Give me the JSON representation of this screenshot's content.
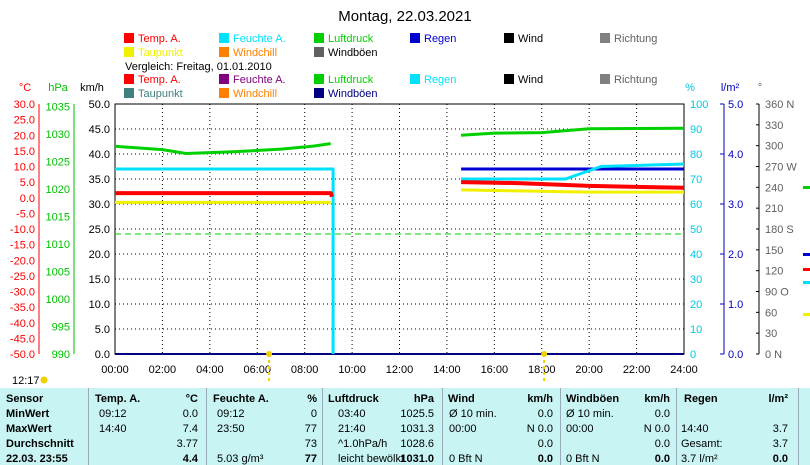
{
  "header": {
    "title": "Montag, 22.03.2021",
    "compare_label": "Vergleich: Freitag, 01.01.2010",
    "time_label": "12:17"
  },
  "legend_main": [
    {
      "label": "Temp. A.",
      "color": "#ff0000"
    },
    {
      "label": "Feuchte A.",
      "color": "#00e0ff"
    },
    {
      "label": "Luftdruck",
      "color": "#00d000"
    },
    {
      "label": "Regen",
      "color": "#0000d0"
    },
    {
      "label": "Wind",
      "color": "#000000"
    },
    {
      "label": "Richtung",
      "color": "#808080"
    },
    {
      "label": "Taupunkt",
      "color": "#f0f000"
    },
    {
      "label": "Windchill",
      "color": "#ff8000"
    },
    {
      "label": "Windböen",
      "color": "#606060"
    }
  ],
  "legend_compare": [
    {
      "label": "Temp. A.",
      "color": "#ff0000"
    },
    {
      "label": "Feuchte A.",
      "color": "#800080"
    },
    {
      "label": "Luftdruck",
      "color": "#00d000"
    },
    {
      "label": "Regen",
      "color": "#00e0ff"
    },
    {
      "label": "Wind",
      "color": "#000000"
    },
    {
      "label": "Richtung",
      "color": "#808080"
    },
    {
      "label": "Taupunkt",
      "color": "#408080"
    },
    {
      "label": "Windchill",
      "color": "#ff8000"
    },
    {
      "label": "Windböen",
      "color": "#000080"
    }
  ],
  "axes": {
    "temp": {
      "unit": "°C",
      "color": "#ff0000",
      "ticks": [
        "30.0",
        "25.0",
        "20.0",
        "15.0",
        "10.0",
        "5.0",
        "0.0",
        "-5.0",
        "-10.0",
        "-15.0",
        "-20.0",
        "-25.0",
        "-30.0",
        "-35.0",
        "-40.0",
        "-45.0",
        "-50.0"
      ]
    },
    "pressure": {
      "unit": "hPa",
      "color": "#00c000",
      "ticks": [
        "1035",
        "1030",
        "1025",
        "1020",
        "1015",
        "1010",
        "1005",
        "1000",
        "995",
        "990"
      ]
    },
    "wind": {
      "unit": "km/h",
      "color": "#000000",
      "ticks": [
        "50.0",
        "45.0",
        "40.0",
        "35.0",
        "30.0",
        "25.0",
        "20.0",
        "15.0",
        "10.0",
        "5.0",
        "0.0"
      ]
    },
    "humidity": {
      "unit": "%",
      "color": "#00c8e8",
      "ticks": [
        "100",
        "90",
        "80",
        "70",
        "60",
        "50",
        "40",
        "30",
        "20",
        "10",
        "0"
      ]
    },
    "rain": {
      "unit": "l/m²",
      "color": "#0000c0",
      "ticks": [
        "5.0",
        "4.0",
        "3.0",
        "2.0",
        "1.0",
        "0.0"
      ]
    },
    "direction": {
      "unit": "°",
      "color": "#606060",
      "ticks": [
        "360 N",
        "330",
        "300",
        "270 W",
        "240",
        "210",
        "180 S",
        "150",
        "120",
        "90 O",
        "60",
        "30",
        "0 N"
      ]
    },
    "x_ticks": [
      "00:00",
      "02:00",
      "04:00",
      "06:00",
      "08:00",
      "10:00",
      "12:00",
      "14:00",
      "16:00",
      "18:00",
      "20:00",
      "22:00",
      "24:00"
    ]
  },
  "chart_data": {
    "type": "line",
    "title": "Montag, 22.03.2021",
    "x_unit": "hours",
    "xlim": [
      0,
      24
    ],
    "series": [
      {
        "name": "Temp. A.",
        "color": "#ff0000",
        "axis": "temp",
        "width": 4,
        "points": [
          [
            0,
            1.5
          ],
          [
            9.1,
            1.5
          ],
          [
            9.15,
            0.3
          ],
          null,
          [
            14.6,
            5.0
          ],
          [
            17,
            4.7
          ],
          [
            20,
            3.8
          ],
          [
            24,
            3.2
          ]
        ]
      },
      {
        "name": "Feuchte A.",
        "color": "#00e0ff",
        "axis": "humidity",
        "width": 3,
        "points": [
          [
            0,
            74
          ],
          [
            9.2,
            74
          ],
          [
            9.2,
            0
          ],
          null,
          [
            14.6,
            70
          ],
          [
            17,
            70
          ],
          [
            19,
            70
          ],
          [
            20.5,
            75
          ],
          [
            24,
            76
          ]
        ]
      },
      {
        "name": "Luftdruck",
        "color": "#00d000",
        "axis": "pressure",
        "width": 3,
        "points": [
          [
            0,
            1027.8
          ],
          [
            2,
            1027.2
          ],
          [
            3,
            1026.5
          ],
          [
            5,
            1026.8
          ],
          [
            7,
            1027.3
          ],
          [
            8.3,
            1027.8
          ],
          [
            9.1,
            1028.3
          ],
          null,
          [
            14.6,
            1029.8
          ],
          [
            16,
            1030.2
          ],
          [
            18,
            1030.3
          ],
          [
            20,
            1031.0
          ],
          [
            24,
            1031.1
          ]
        ]
      },
      {
        "name": "Taupunkt",
        "color": "#f0f000",
        "axis": "temp",
        "width": 3,
        "points": [
          [
            0,
            -1.5
          ],
          [
            9.1,
            -1.5
          ],
          null,
          [
            14.6,
            2.5
          ],
          [
            17,
            2.2
          ],
          [
            20,
            1.8
          ],
          [
            24,
            1.8
          ]
        ]
      },
      {
        "name": "Regen",
        "color": "#0000d0",
        "axis": "rain",
        "width": 3,
        "points": [
          [
            14.6,
            3.7
          ],
          [
            24,
            3.7
          ]
        ]
      },
      {
        "name": "Wind",
        "color": "#000080",
        "axis": "wind",
        "width": 2,
        "points": [
          [
            0,
            0
          ],
          [
            24,
            0
          ]
        ]
      }
    ],
    "reference_line": {
      "axis": "humidity",
      "value": 48,
      "color": "#00d000"
    },
    "markers_x": [
      6.5,
      18.1
    ]
  },
  "table": {
    "headers": [
      {
        "label": "Sensor"
      },
      {
        "label": "Temp. A.",
        "unit": "°C"
      },
      {
        "label": "Feuchte A.",
        "unit": "%"
      },
      {
        "label": "Luftdruck",
        "unit": "hPa"
      },
      {
        "label": "Wind",
        "unit": "km/h"
      },
      {
        "label": "Windböen",
        "unit": "km/h"
      },
      {
        "label": "Regen",
        "unit": "l/m²"
      }
    ],
    "rows": [
      {
        "label": "MinWert",
        "cells": [
          [
            "09:12",
            "0.0"
          ],
          [
            "09:12",
            "0"
          ],
          [
            "03:40",
            "1025.5"
          ],
          [
            "Ø 10 min.",
            "0.0"
          ],
          [
            "Ø 10 min.",
            "0.0"
          ],
          [
            "",
            ""
          ]
        ]
      },
      {
        "label": "MaxWert",
        "cells": [
          [
            "14:40",
            "7.4"
          ],
          [
            "23:50",
            "77"
          ],
          [
            "21:40",
            "1031.3"
          ],
          [
            "00:00",
            "N 0.0"
          ],
          [
            "00:00",
            "N 0.0"
          ],
          [
            "14:40",
            "3.7"
          ]
        ]
      },
      {
        "label": "Durchschnitt",
        "cells": [
          [
            "",
            "3.77"
          ],
          [
            "",
            "73"
          ],
          [
            "^1.0hPa/h",
            "1028.6"
          ],
          [
            "",
            "0.0"
          ],
          [
            "",
            "0.0"
          ],
          [
            "Gesamt:",
            "3.7"
          ]
        ]
      },
      {
        "label": "22.03. 23:55",
        "cells": [
          [
            "",
            "4.4"
          ],
          [
            "5.03 g/m³",
            "77"
          ],
          [
            "leicht bewölkt",
            "1031.0"
          ],
          [
            "0 Bft N",
            "0.0"
          ],
          [
            "0 Bft N",
            "0.0"
          ],
          [
            "3.7 l/m²",
            "0.0"
          ]
        ]
      }
    ]
  }
}
